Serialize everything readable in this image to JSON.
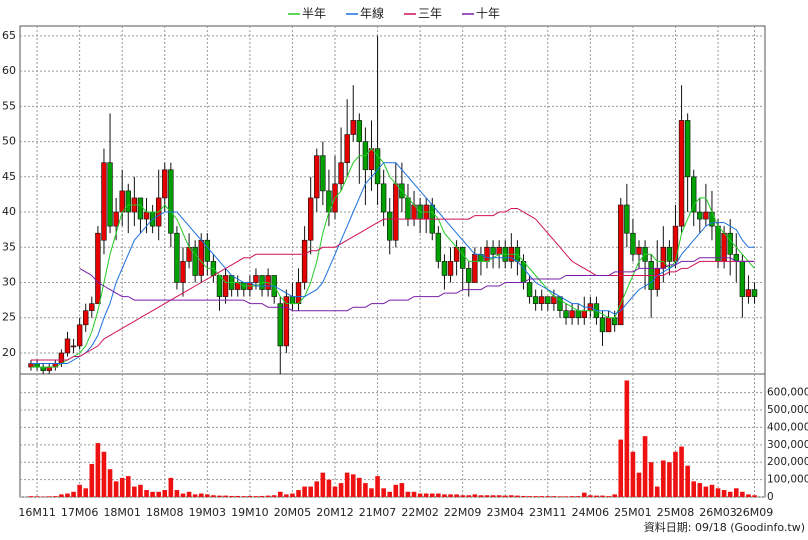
{
  "chart_data": {
    "type": "candlestick",
    "categories": [
      null,
      "16M11",
      null,
      null,
      null,
      null,
      null,
      null,
      "17M06",
      null,
      null,
      null,
      null,
      null,
      null,
      "18M01",
      null,
      null,
      null,
      null,
      null,
      null,
      "18M08",
      null,
      null,
      null,
      null,
      null,
      null,
      "19M03",
      null,
      null,
      null,
      null,
      null,
      null,
      "19M10",
      null,
      null,
      null,
      null,
      null,
      null,
      "20M05",
      null,
      null,
      null,
      null,
      null,
      null,
      "20M12",
      null,
      null,
      null,
      null,
      null,
      null,
      "21M07",
      null,
      null,
      null,
      null,
      null,
      null,
      "22M02",
      null,
      null,
      null,
      null,
      null,
      null,
      "22M09",
      null,
      null,
      null,
      null,
      null,
      null,
      "23M04",
      null,
      null,
      null,
      null,
      null,
      null,
      "23M11",
      null,
      null,
      null,
      null,
      null,
      null,
      "24M06",
      null,
      null,
      null,
      null,
      null,
      null,
      "25M01",
      null,
      null,
      null,
      null,
      null,
      null,
      "25M08",
      null,
      null,
      null,
      null,
      null,
      null,
      "26M03",
      null,
      null,
      null,
      null,
      null,
      "26M09"
    ],
    "open": [
      18,
      18.5,
      18,
      17.5,
      18,
      18.5,
      20,
      21,
      21,
      24,
      26,
      27,
      36,
      47,
      38,
      40,
      43,
      40,
      42,
      39,
      40,
      38,
      42,
      46,
      37,
      30,
      33,
      35,
      31,
      36,
      33,
      31,
      28,
      31,
      29,
      30,
      29,
      30,
      31,
      29,
      31,
      27,
      21,
      28,
      27,
      30,
      36,
      42,
      48,
      43,
      40,
      44,
      47,
      51,
      53,
      50,
      46,
      49,
      44,
      40,
      36,
      44,
      42,
      39,
      41,
      39,
      41,
      37,
      33,
      31,
      33,
      35,
      32,
      30,
      34,
      33,
      35,
      34,
      35,
      33,
      35,
      33,
      30,
      28,
      27,
      28,
      27,
      28,
      26,
      25,
      26,
      25,
      26,
      27,
      25,
      23,
      25,
      24,
      41,
      37,
      34,
      35,
      33,
      29,
      32,
      35,
      33,
      38,
      53,
      45,
      40,
      39,
      40,
      38,
      33,
      37,
      34,
      33,
      28,
      29
    ],
    "high": [
      19,
      19,
      18.5,
      18.5,
      19,
      20.5,
      23,
      22,
      25,
      27,
      28,
      38,
      49,
      54,
      42,
      46,
      44,
      45,
      42,
      42,
      41,
      46,
      47,
      47,
      38,
      35,
      37,
      36,
      37,
      37,
      34,
      31,
      32,
      31,
      31,
      30,
      31,
      32,
      31,
      32,
      31,
      28,
      29,
      30,
      32,
      38,
      45,
      49,
      50,
      46,
      48,
      52,
      56,
      58,
      54,
      52,
      53,
      65,
      46,
      42,
      47,
      47,
      44,
      43,
      42,
      42,
      42,
      38,
      34,
      35,
      36,
      35,
      33,
      35,
      35,
      36,
      36,
      36,
      36,
      37,
      36,
      34,
      31,
      29,
      29,
      28,
      29,
      28,
      27,
      27,
      27,
      28,
      28,
      28,
      26,
      26,
      26,
      42,
      44,
      39,
      36,
      36,
      34,
      36,
      38,
      36,
      41,
      58,
      54,
      46,
      42,
      44,
      43,
      39,
      38,
      39,
      37,
      34,
      31,
      30
    ],
    "low": [
      17.5,
      17.5,
      17,
      17,
      17.5,
      18,
      19.5,
      20,
      20.5,
      23,
      25,
      27,
      34,
      37,
      36,
      38,
      37,
      38,
      37,
      37,
      37,
      36,
      40,
      35,
      29,
      28,
      32,
      30,
      30,
      31,
      30,
      26,
      27,
      28,
      28,
      28,
      28,
      29,
      28,
      28,
      27,
      17,
      20,
      26,
      26,
      29,
      34,
      40,
      41,
      38,
      39,
      43,
      45,
      50,
      44,
      41,
      43,
      41,
      38,
      34,
      35,
      40,
      38,
      38,
      37,
      37,
      36,
      32,
      29,
      30,
      31,
      29,
      28,
      30,
      31,
      32,
      32,
      32,
      32,
      32,
      31,
      29,
      27,
      26,
      26,
      26,
      26,
      25,
      24,
      24,
      24,
      24,
      25,
      24,
      21,
      23,
      23,
      24,
      35,
      33,
      32,
      29,
      25,
      28,
      30,
      31,
      32,
      37,
      40,
      38,
      37,
      38,
      36,
      32,
      32,
      31,
      30,
      25,
      27,
      27
    ],
    "close": [
      18.5,
      18,
      17.5,
      18,
      18.5,
      20,
      22,
      21,
      24,
      26,
      27,
      37,
      47,
      38,
      40,
      43,
      40,
      42,
      39,
      40,
      38,
      42,
      46,
      37,
      30,
      33,
      35,
      31,
      36,
      33,
      31,
      28,
      31,
      29,
      30,
      29,
      30,
      31,
      29,
      31,
      28,
      21,
      28,
      27,
      30,
      36,
      42,
      48,
      43,
      40,
      44,
      47,
      51,
      53,
      50,
      46,
      49,
      44,
      40,
      36,
      44,
      42,
      39,
      41,
      39,
      41,
      37,
      33,
      31,
      33,
      35,
      32,
      30,
      34,
      33,
      35,
      34,
      35,
      33,
      35,
      33,
      30,
      28,
      27,
      28,
      27,
      28,
      26,
      25,
      26,
      25,
      26,
      27,
      25,
      23,
      25,
      24,
      41,
      37,
      34,
      35,
      33,
      29,
      32,
      35,
      33,
      38,
      53,
      45,
      40,
      39,
      40,
      38,
      33,
      37,
      34,
      33,
      28,
      29,
      28
    ],
    "up_color": "#e60000",
    "down_color": "#00a000",
    "series": [
      {
        "name": "半年",
        "color": "#22cc22",
        "values": [
          18,
          18,
          18,
          18,
          18,
          18.5,
          19,
          19.5,
          20,
          21,
          23,
          26,
          30,
          34,
          37,
          40,
          41,
          41,
          41,
          40,
          40,
          40,
          41,
          40,
          39,
          37,
          35,
          34,
          33,
          32,
          32,
          31,
          30,
          30,
          30,
          29.5,
          29.5,
          29.5,
          30,
          30,
          29.5,
          28,
          27,
          27,
          27,
          28,
          30,
          33,
          37,
          40,
          42,
          43,
          45,
          47,
          48,
          48,
          49,
          48,
          47,
          45,
          44,
          43,
          42,
          41,
          40,
          40,
          40,
          39,
          37,
          36,
          35,
          34,
          33,
          33,
          33,
          33,
          33.5,
          34,
          34,
          34,
          34,
          33,
          32,
          31,
          30,
          29,
          28,
          27.5,
          27,
          26.5,
          26,
          26,
          26,
          26,
          25.5,
          25,
          25,
          27,
          29,
          31,
          33,
          34,
          34,
          33,
          33,
          32,
          33,
          37,
          39,
          41,
          42,
          42,
          40,
          38,
          37,
          36,
          35,
          34,
          33,
          32
        ]
      },
      {
        "name": "年線",
        "color": "#1a70e0",
        "values": [
          18.5,
          18.5,
          18.5,
          18.5,
          18.5,
          18.5,
          18.5,
          19,
          19.5,
          20,
          21,
          22.5,
          25,
          27,
          30,
          32,
          34,
          36,
          37,
          38,
          39,
          39.5,
          40,
          40,
          40,
          39,
          38,
          37,
          36,
          35,
          34,
          33,
          32,
          31,
          30.5,
          30,
          30,
          29.5,
          29.5,
          29.5,
          29.5,
          29,
          28.5,
          28,
          28,
          28,
          28.5,
          29,
          30,
          32,
          34,
          36,
          38,
          40,
          42,
          44,
          45,
          46,
          47,
          47,
          47,
          46,
          45,
          44,
          43,
          42,
          41,
          40,
          39,
          38,
          37,
          36,
          35,
          34,
          34,
          33.5,
          33.5,
          33.5,
          33.5,
          33.5,
          33,
          32,
          31,
          30,
          29.5,
          29,
          28.5,
          28,
          27.5,
          27,
          27,
          26.5,
          26.5,
          26,
          26,
          26,
          25.5,
          26,
          27,
          28,
          29,
          29.5,
          30,
          31,
          31.5,
          32,
          32.5,
          34,
          35,
          36,
          37,
          38,
          38.5,
          38.5,
          38.5,
          38,
          37.5,
          36,
          35,
          35
        ]
      },
      {
        "name": "三年",
        "color": "#d0105a",
        "values": [
          19,
          19,
          19,
          19,
          19,
          19,
          19,
          19.5,
          19.5,
          20,
          20.5,
          21,
          22,
          22.5,
          23,
          23.5,
          24,
          24.5,
          25,
          25.5,
          26,
          26.5,
          27,
          27.5,
          28,
          28.5,
          29,
          29.5,
          30,
          30.5,
          31,
          31.5,
          32,
          32.5,
          33,
          33.5,
          33.5,
          34,
          34,
          34,
          34,
          34,
          34,
          34,
          34,
          34,
          34.5,
          34.5,
          35,
          35,
          35,
          35.5,
          36,
          36.5,
          37,
          37.5,
          38,
          38.5,
          39,
          39,
          39,
          39,
          39,
          39,
          39,
          39,
          39,
          39,
          39,
          39,
          39,
          39,
          39,
          39.5,
          39.5,
          39.5,
          39.5,
          40,
          40,
          40.5,
          40.5,
          40,
          39.5,
          39,
          38,
          37,
          36,
          35,
          34,
          33,
          32.5,
          32,
          31.5,
          31,
          31,
          31,
          31,
          31,
          31,
          31,
          31,
          31,
          31,
          31,
          31,
          31.5,
          31.5,
          32,
          32,
          32.5,
          33,
          33,
          33,
          33,
          33,
          33,
          33,
          33,
          33,
          33
        ]
      },
      {
        "name": "十年",
        "color": "#7a1ea8",
        "values": [
          null,
          null,
          null,
          null,
          null,
          null,
          null,
          null,
          32,
          31.5,
          31,
          30,
          29.5,
          29,
          28.5,
          28,
          28,
          27.5,
          27.5,
          27.5,
          27.5,
          27.5,
          27.5,
          27.5,
          27.5,
          27.5,
          27.5,
          27.5,
          27.5,
          27.5,
          27.5,
          27.5,
          27.5,
          27.5,
          27.5,
          27.5,
          27,
          27,
          27,
          26.5,
          26.5,
          26.5,
          26.5,
          26,
          26,
          26,
          26,
          26,
          26,
          26,
          26,
          26,
          26,
          26.5,
          26.5,
          26.5,
          27,
          27,
          27,
          27.5,
          27.5,
          27.5,
          27.5,
          28,
          28,
          28,
          28,
          28,
          28.5,
          28.5,
          28.5,
          29,
          29,
          29,
          29,
          29.5,
          29.5,
          29.5,
          30,
          30,
          30,
          30,
          30.5,
          30.5,
          30.5,
          30.5,
          30.5,
          30.5,
          31,
          31,
          31,
          31,
          31,
          31,
          31,
          31,
          31.5,
          31.5,
          31.5,
          31.5,
          32,
          32,
          32,
          32,
          32,
          32.5,
          32.5,
          33,
          33,
          33,
          33.5,
          33.5,
          33.5,
          33.5,
          33.5,
          33.5,
          33,
          33,
          33,
          33
        ]
      }
    ],
    "volume": {
      "color": "#ee1111",
      "values": [
        5000,
        4000,
        3000,
        4000,
        5000,
        15000,
        20000,
        30000,
        70000,
        50000,
        190000,
        310000,
        260000,
        160000,
        90000,
        110000,
        120000,
        60000,
        70000,
        40000,
        30000,
        30000,
        40000,
        110000,
        40000,
        20000,
        30000,
        15000,
        20000,
        15000,
        10000,
        8000,
        8000,
        6000,
        6000,
        5000,
        6000,
        5000,
        6000,
        8000,
        10000,
        30000,
        15000,
        20000,
        40000,
        60000,
        60000,
        90000,
        140000,
        100000,
        60000,
        80000,
        140000,
        130000,
        110000,
        80000,
        50000,
        120000,
        50000,
        30000,
        70000,
        80000,
        30000,
        30000,
        20000,
        20000,
        20000,
        20000,
        15000,
        15000,
        15000,
        10000,
        10000,
        15000,
        10000,
        10000,
        10000,
        10000,
        8000,
        10000,
        8000,
        6000,
        5000,
        5000,
        5000,
        5000,
        5000,
        4000,
        4000,
        5000,
        5000,
        25000,
        10000,
        8000,
        8000,
        5000,
        15000,
        330000,
        670000,
        260000,
        140000,
        350000,
        200000,
        60000,
        210000,
        200000,
        260000,
        290000,
        180000,
        90000,
        80000,
        60000,
        70000,
        50000,
        40000,
        30000,
        50000,
        30000,
        15000,
        10000
      ]
    },
    "ylim": [
      17.3,
      66.4
    ],
    "yticks": [
      20,
      25,
      30,
      35,
      40,
      45,
      50,
      55,
      60,
      65
    ],
    "y2lim": [
      0,
      690000
    ],
    "y2ticks": [
      0,
      {
        "value": 100000,
        "label": "100,000"
      },
      {
        "value": 200000,
        "label": "200,000"
      },
      {
        "value": 300000,
        "label": "300,000"
      },
      {
        "value": 400000,
        "label": "400,000"
      },
      {
        "value": 500000,
        "label": "500,000"
      },
      {
        "value": 600000,
        "label": "600,000"
      }
    ],
    "grid": true,
    "legend": "top",
    "footer": "資料日期: 09/18 (Goodinfo.tw)"
  }
}
